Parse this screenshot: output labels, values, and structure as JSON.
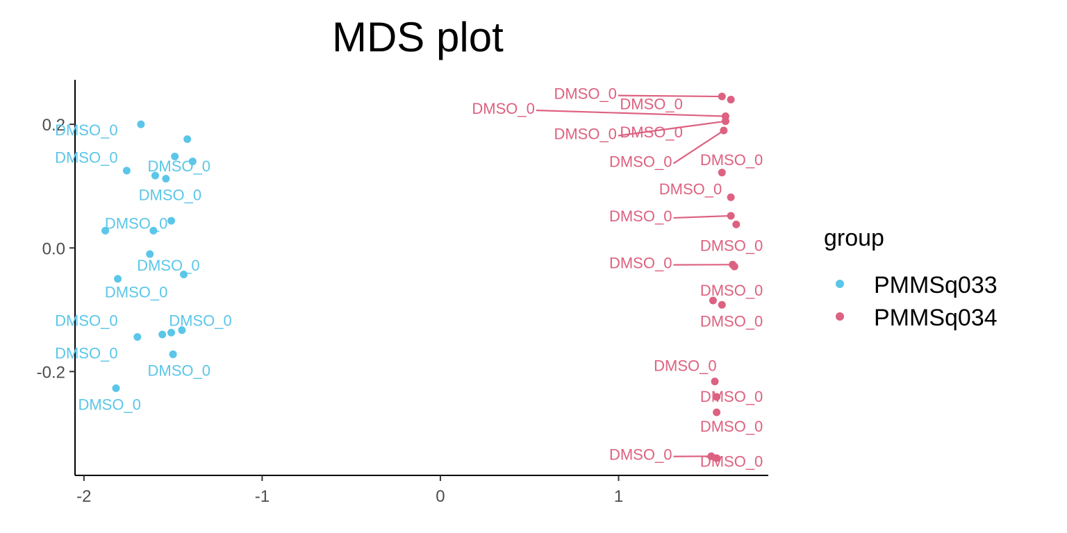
{
  "chart_data": {
    "type": "scatter",
    "title": "MDS plot",
    "xlabel": "",
    "ylabel": "",
    "xlim": [
      -2.05,
      1.84
    ],
    "ylim": [
      -0.368,
      0.272
    ],
    "x_ticks": [
      -2,
      -1,
      0,
      1
    ],
    "y_ticks": [
      0.2,
      0.0,
      -0.2
    ],
    "x_tick_labels": [
      "-2",
      "-1",
      "0",
      "1"
    ],
    "y_tick_labels": [
      "0.2",
      "0.0",
      "-0.2"
    ],
    "grid": false,
    "legend": {
      "title": "group",
      "placement": "right"
    },
    "series": [
      {
        "name": "PMMSq033",
        "color": "#5BC6E8",
        "points": [
          {
            "x": -1.68,
            "y": 0.2,
            "label": "DMSO_0",
            "lx": -1.81,
            "ly": 0.191
          },
          {
            "x": -1.42,
            "y": 0.176,
            "label": ""
          },
          {
            "x": -1.49,
            "y": 0.148,
            "label": "DMSO_0",
            "lx": -1.81,
            "ly": 0.147
          },
          {
            "x": -1.39,
            "y": 0.14,
            "label": "DMSO_0",
            "lx": -1.29,
            "ly": 0.133
          },
          {
            "x": -1.76,
            "y": 0.125,
            "label": ""
          },
          {
            "x": -1.6,
            "y": 0.117,
            "label": ""
          },
          {
            "x": -1.54,
            "y": 0.112,
            "label": "DMSO_0",
            "lx": -1.34,
            "ly": 0.086
          },
          {
            "x": -1.51,
            "y": 0.044,
            "label": "DMSO_0",
            "lx": -1.53,
            "ly": 0.04
          },
          {
            "x": -1.88,
            "y": 0.028,
            "label": ""
          },
          {
            "x": -1.61,
            "y": 0.028,
            "label": ""
          },
          {
            "x": -1.63,
            "y": -0.01,
            "label": "DMSO_0",
            "lx": -1.35,
            "ly": -0.028
          },
          {
            "x": -1.44,
            "y": -0.043,
            "label": ""
          },
          {
            "x": -1.81,
            "y": -0.05,
            "label": "DMSO_0",
            "lx": -1.53,
            "ly": -0.071
          },
          {
            "x": -1.7,
            "y": -0.144,
            "label": "DMSO_0",
            "lx": -1.81,
            "ly": -0.117
          },
          {
            "x": -1.56,
            "y": -0.14,
            "label": ""
          },
          {
            "x": -1.51,
            "y": -0.137,
            "label": ""
          },
          {
            "x": -1.45,
            "y": -0.133,
            "label": "DMSO_0",
            "lx": -1.17,
            "ly": -0.117
          },
          {
            "x": -1.5,
            "y": -0.172,
            "label": "DMSO_0",
            "lx": -1.81,
            "ly": -0.17
          },
          {
            "x": -1.5,
            "y": -0.172,
            "label": "DMSO_0",
            "lx": -1.29,
            "ly": -0.198
          },
          {
            "x": -1.82,
            "y": -0.227,
            "label": "DMSO_0",
            "lx": -1.68,
            "ly": -0.253
          }
        ]
      },
      {
        "name": "PMMSq034",
        "color": "#DD6180",
        "points": [
          {
            "x": 1.58,
            "y": 0.245,
            "label": "DMSO_0",
            "lx": 0.99,
            "ly": 0.25,
            "line": true
          },
          {
            "x": 1.63,
            "y": 0.24,
            "label": "DMSO_0",
            "lx": 1.36,
            "ly": 0.233
          },
          {
            "x": 1.6,
            "y": 0.213,
            "label": "DMSO_0",
            "lx": 0.53,
            "ly": 0.226,
            "line": true
          },
          {
            "x": 1.6,
            "y": 0.205,
            "label": "DMSO_0",
            "lx": 0.99,
            "ly": 0.185,
            "line": true
          },
          {
            "x": 1.6,
            "y": 0.205,
            "label": "DMSO_0",
            "lx": 1.36,
            "ly": 0.188
          },
          {
            "x": 1.59,
            "y": 0.19,
            "label": "DMSO_0",
            "lx": 1.3,
            "ly": 0.14,
            "line": true
          },
          {
            "x": 1.58,
            "y": 0.122,
            "label": "DMSO_0",
            "lx": 1.81,
            "ly": 0.143
          },
          {
            "x": 1.63,
            "y": 0.082,
            "label": "DMSO_0",
            "lx": 1.58,
            "ly": 0.096
          },
          {
            "x": 1.63,
            "y": 0.052,
            "label": "DMSO_0",
            "lx": 1.3,
            "ly": 0.052,
            "line": true
          },
          {
            "x": 1.66,
            "y": 0.038,
            "label": "DMSO_0",
            "lx": 1.81,
            "ly": 0.004
          },
          {
            "x": 1.64,
            "y": -0.027,
            "label": "DMSO_0",
            "lx": 1.3,
            "ly": -0.024,
            "line": true
          },
          {
            "x": 1.65,
            "y": -0.03,
            "label": ""
          },
          {
            "x": 1.53,
            "y": -0.085,
            "label": "DMSO_0",
            "lx": 1.81,
            "ly": -0.068
          },
          {
            "x": 1.58,
            "y": -0.092,
            "label": "DMSO_0",
            "lx": 1.81,
            "ly": -0.118
          },
          {
            "x": 1.54,
            "y": -0.216,
            "label": "DMSO_0",
            "lx": 1.55,
            "ly": -0.19
          },
          {
            "x": 1.55,
            "y": -0.241,
            "label": "DMSO_0",
            "lx": 1.81,
            "ly": -0.24
          },
          {
            "x": 1.55,
            "y": -0.266,
            "label": "DMSO_0",
            "lx": 1.81,
            "ly": -0.288
          },
          {
            "x": 1.52,
            "y": -0.337,
            "label": "DMSO_0",
            "lx": 1.3,
            "ly": -0.334,
            "line": true
          },
          {
            "x": 1.55,
            "y": -0.34,
            "label": "DMSO_0",
            "lx": 1.81,
            "ly": -0.345
          }
        ]
      }
    ]
  }
}
